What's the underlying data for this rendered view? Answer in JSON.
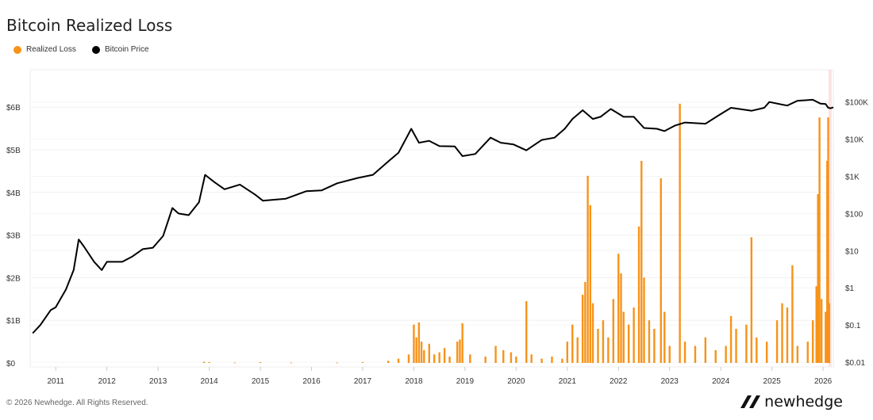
{
  "chart_data": {
    "type": "bar+line",
    "title": "Bitcoin Realized Loss",
    "legend": [
      {
        "name": "Realized Loss",
        "color": "#f7931a"
      },
      {
        "name": "Bitcoin Price",
        "color": "#000000"
      }
    ],
    "legend_placement": "top-left",
    "grid": true,
    "x_ticks": [
      "2011",
      "2012",
      "2013",
      "2014",
      "2015",
      "2016",
      "2017",
      "2018",
      "2019",
      "2020",
      "2021",
      "2022",
      "2023",
      "2024",
      "2025",
      "2026"
    ],
    "xlim": [
      2010.5,
      2026.2
    ],
    "y_left": {
      "ticks": [
        "$0",
        "$1B",
        "$2B",
        "$3B",
        "$4B",
        "$5B",
        "$6B"
      ],
      "ylim": [
        0,
        6.9
      ],
      "unit": "B USD"
    },
    "y_right": {
      "ticks": [
        "$0.01",
        "$0.1",
        "$1",
        "$10",
        "$100",
        "$1K",
        "$10K",
        "$100K"
      ],
      "scale": "log",
      "ylim": [
        0.01,
        400000
      ]
    },
    "realized_loss": [
      [
        2013.9,
        0.03
      ],
      [
        2014.0,
        0.02
      ],
      [
        2014.5,
        0.01
      ],
      [
        2015.0,
        0.02
      ],
      [
        2015.6,
        0.01
      ],
      [
        2016.5,
        0.01
      ],
      [
        2017.0,
        0.02
      ],
      [
        2017.5,
        0.05
      ],
      [
        2017.7,
        0.1
      ],
      [
        2017.9,
        0.2
      ],
      [
        2018.0,
        0.9
      ],
      [
        2018.05,
        0.6
      ],
      [
        2018.1,
        0.95
      ],
      [
        2018.15,
        0.5
      ],
      [
        2018.2,
        0.3
      ],
      [
        2018.3,
        0.45
      ],
      [
        2018.4,
        0.2
      ],
      [
        2018.5,
        0.25
      ],
      [
        2018.6,
        0.35
      ],
      [
        2018.7,
        0.15
      ],
      [
        2018.85,
        0.5
      ],
      [
        2018.9,
        0.55
      ],
      [
        2018.95,
        0.93
      ],
      [
        2019.1,
        0.2
      ],
      [
        2019.4,
        0.15
      ],
      [
        2019.6,
        0.4
      ],
      [
        2019.75,
        0.3
      ],
      [
        2019.9,
        0.25
      ],
      [
        2020.0,
        0.15
      ],
      [
        2020.2,
        1.45
      ],
      [
        2020.3,
        0.2
      ],
      [
        2020.5,
        0.1
      ],
      [
        2020.7,
        0.15
      ],
      [
        2020.9,
        0.1
      ],
      [
        2021.0,
        0.5
      ],
      [
        2021.1,
        0.9
      ],
      [
        2021.2,
        0.6
      ],
      [
        2021.3,
        1.6
      ],
      [
        2021.35,
        1.9
      ],
      [
        2021.4,
        4.39
      ],
      [
        2021.45,
        3.7
      ],
      [
        2021.5,
        1.4
      ],
      [
        2021.6,
        0.8
      ],
      [
        2021.7,
        1.0
      ],
      [
        2021.8,
        0.6
      ],
      [
        2021.9,
        1.5
      ],
      [
        2022.0,
        2.56
      ],
      [
        2022.05,
        2.1
      ],
      [
        2022.1,
        1.2
      ],
      [
        2022.2,
        0.9
      ],
      [
        2022.3,
        1.3
      ],
      [
        2022.4,
        3.2
      ],
      [
        2022.45,
        4.74
      ],
      [
        2022.5,
        2.0
      ],
      [
        2022.6,
        1.0
      ],
      [
        2022.7,
        0.8
      ],
      [
        2022.83,
        4.33
      ],
      [
        2022.9,
        1.2
      ],
      [
        2023.0,
        0.4
      ],
      [
        2023.2,
        6.08
      ],
      [
        2023.3,
        0.5
      ],
      [
        2023.5,
        0.4
      ],
      [
        2023.7,
        0.6
      ],
      [
        2023.9,
        0.3
      ],
      [
        2024.1,
        0.4
      ],
      [
        2024.2,
        1.1
      ],
      [
        2024.3,
        0.8
      ],
      [
        2024.5,
        0.9
      ],
      [
        2024.6,
        2.95
      ],
      [
        2024.7,
        0.6
      ],
      [
        2024.9,
        0.5
      ],
      [
        2025.1,
        1.0
      ],
      [
        2025.2,
        1.4
      ],
      [
        2025.3,
        1.3
      ],
      [
        2025.4,
        2.29
      ],
      [
        2025.5,
        0.4
      ],
      [
        2025.7,
        0.5
      ],
      [
        2025.8,
        1.0
      ],
      [
        2025.87,
        1.8
      ],
      [
        2025.9,
        3.96
      ],
      [
        2025.93,
        5.76
      ],
      [
        2025.97,
        1.5
      ],
      [
        2026.05,
        1.2
      ],
      [
        2026.08,
        4.74
      ],
      [
        2026.1,
        5.76
      ],
      [
        2026.12,
        1.4
      ]
    ],
    "bitcoin_price": [
      [
        2010.55,
        0.06
      ],
      [
        2010.7,
        0.1
      ],
      [
        2010.9,
        0.25
      ],
      [
        2011.0,
        0.3
      ],
      [
        2011.2,
        0.9
      ],
      [
        2011.35,
        3
      ],
      [
        2011.45,
        20
      ],
      [
        2011.55,
        13
      ],
      [
        2011.75,
        5
      ],
      [
        2011.9,
        3
      ],
      [
        2012.0,
        5
      ],
      [
        2012.3,
        5
      ],
      [
        2012.5,
        7
      ],
      [
        2012.7,
        11
      ],
      [
        2012.9,
        12
      ],
      [
        2013.1,
        25
      ],
      [
        2013.28,
        140
      ],
      [
        2013.4,
        100
      ],
      [
        2013.6,
        90
      ],
      [
        2013.8,
        200
      ],
      [
        2013.92,
        1100
      ],
      [
        2014.1,
        700
      ],
      [
        2014.3,
        450
      ],
      [
        2014.6,
        600
      ],
      [
        2014.9,
        320
      ],
      [
        2015.05,
        220
      ],
      [
        2015.5,
        250
      ],
      [
        2015.9,
        400
      ],
      [
        2016.2,
        420
      ],
      [
        2016.5,
        650
      ],
      [
        2016.9,
        900
      ],
      [
        2017.2,
        1100
      ],
      [
        2017.5,
        2500
      ],
      [
        2017.7,
        4300
      ],
      [
        2017.95,
        19000
      ],
      [
        2018.1,
        8000
      ],
      [
        2018.3,
        9000
      ],
      [
        2018.5,
        6500
      ],
      [
        2018.8,
        6400
      ],
      [
        2018.95,
        3500
      ],
      [
        2019.2,
        4000
      ],
      [
        2019.5,
        11000
      ],
      [
        2019.7,
        8000
      ],
      [
        2019.95,
        7200
      ],
      [
        2020.2,
        5000
      ],
      [
        2020.5,
        9500
      ],
      [
        2020.75,
        11000
      ],
      [
        2020.95,
        19000
      ],
      [
        2021.1,
        35000
      ],
      [
        2021.3,
        60000
      ],
      [
        2021.5,
        35000
      ],
      [
        2021.65,
        40000
      ],
      [
        2021.85,
        65000
      ],
      [
        2022.1,
        40000
      ],
      [
        2022.3,
        40000
      ],
      [
        2022.5,
        20000
      ],
      [
        2022.75,
        19000
      ],
      [
        2022.9,
        16500
      ],
      [
        2023.1,
        23000
      ],
      [
        2023.3,
        28000
      ],
      [
        2023.7,
        26000
      ],
      [
        2023.95,
        43000
      ],
      [
        2024.2,
        70000
      ],
      [
        2024.6,
        58000
      ],
      [
        2024.85,
        70000
      ],
      [
        2024.95,
        100000
      ],
      [
        2025.2,
        85000
      ],
      [
        2025.3,
        80000
      ],
      [
        2025.5,
        108000
      ],
      [
        2025.8,
        115000
      ],
      [
        2025.95,
        90000
      ],
      [
        2026.05,
        88000
      ],
      [
        2026.1,
        70000
      ],
      [
        2026.15,
        68000
      ],
      [
        2026.2,
        72000
      ]
    ]
  },
  "footer": {
    "copyright": "© 2026 Newhedge. All Rights Reserved.",
    "logo": "newhedge"
  }
}
